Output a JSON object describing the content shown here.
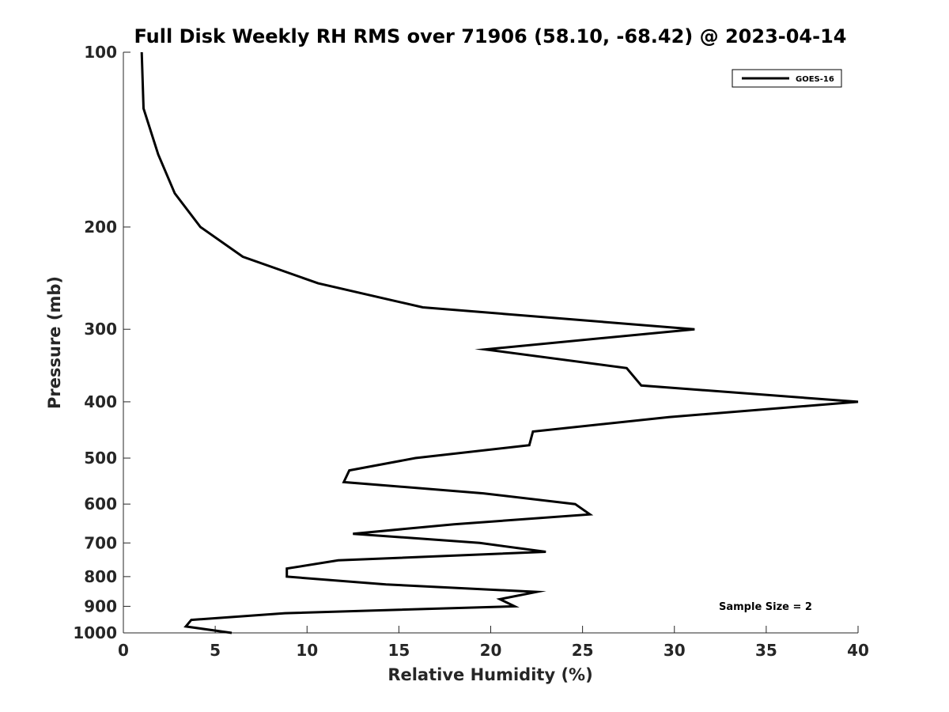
{
  "chart_data": {
    "type": "line",
    "title": "Full Disk Weekly RH RMS over 71906 (58.10, -68.42) @ 2023-04-14",
    "xlabel": "Relative Humidity (%)",
    "ylabel": "Pressure (mb)",
    "xlim": [
      0,
      40
    ],
    "ylim": [
      100,
      1000
    ],
    "y_scale": "log",
    "y_reversed": true,
    "x_ticks": [
      0,
      5,
      10,
      15,
      20,
      25,
      30,
      35,
      40
    ],
    "y_ticks": [
      100,
      200,
      300,
      400,
      500,
      600,
      700,
      800,
      900,
      1000
    ],
    "grid": false,
    "legend_position": "top-right",
    "annotation": "Sample Size = 2",
    "series": [
      {
        "name": "GOES-16",
        "color": "#000000",
        "points": [
          {
            "x": 1.0,
            "p": 100
          },
          {
            "x": 1.1,
            "p": 125
          },
          {
            "x": 1.9,
            "p": 150
          },
          {
            "x": 2.8,
            "p": 175
          },
          {
            "x": 4.2,
            "p": 200
          },
          {
            "x": 6.5,
            "p": 225
          },
          {
            "x": 10.6,
            "p": 250
          },
          {
            "x": 16.3,
            "p": 275
          },
          {
            "x": 31.1,
            "p": 300
          },
          {
            "x": 19.7,
            "p": 325
          },
          {
            "x": 27.4,
            "p": 350
          },
          {
            "x": 28.2,
            "p": 375
          },
          {
            "x": 40.0,
            "p": 400
          },
          {
            "x": 29.7,
            "p": 425
          },
          {
            "x": 22.3,
            "p": 450
          },
          {
            "x": 22.1,
            "p": 475
          },
          {
            "x": 15.9,
            "p": 500
          },
          {
            "x": 12.3,
            "p": 525
          },
          {
            "x": 12.0,
            "p": 550
          },
          {
            "x": 19.6,
            "p": 575
          },
          {
            "x": 24.6,
            "p": 600
          },
          {
            "x": 25.4,
            "p": 625
          },
          {
            "x": 18.0,
            "p": 650
          },
          {
            "x": 12.5,
            "p": 675
          },
          {
            "x": 19.4,
            "p": 700
          },
          {
            "x": 23.0,
            "p": 725
          },
          {
            "x": 11.7,
            "p": 750
          },
          {
            "x": 8.9,
            "p": 775
          },
          {
            "x": 8.9,
            "p": 800
          },
          {
            "x": 14.3,
            "p": 825
          },
          {
            "x": 22.5,
            "p": 850
          },
          {
            "x": 20.5,
            "p": 875
          },
          {
            "x": 21.3,
            "p": 900
          },
          {
            "x": 8.8,
            "p": 925
          },
          {
            "x": 3.7,
            "p": 950
          },
          {
            "x": 3.4,
            "p": 975
          },
          {
            "x": 5.9,
            "p": 1000
          }
        ]
      }
    ]
  }
}
